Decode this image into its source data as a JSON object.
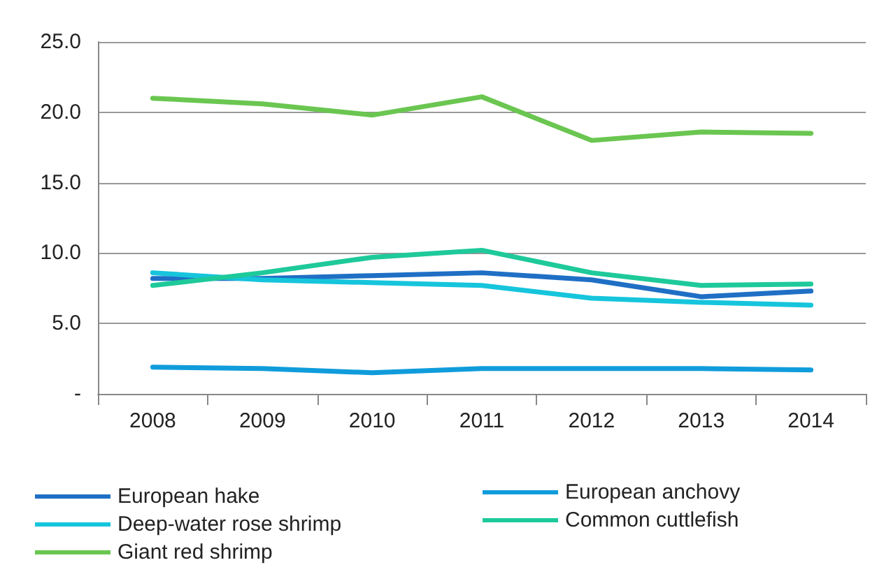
{
  "chart_data": {
    "type": "line",
    "categories": [
      "2008",
      "2009",
      "2010",
      "2011",
      "2012",
      "2013",
      "2014"
    ],
    "series": [
      {
        "name": "European hake",
        "color": "#1f6fc5",
        "values": [
          8.2,
          8.2,
          8.4,
          8.6,
          8.1,
          6.9,
          7.3
        ]
      },
      {
        "name": "European anchovy",
        "color": "#109cdb",
        "values": [
          1.9,
          1.8,
          1.5,
          1.8,
          1.8,
          1.8,
          1.7
        ]
      },
      {
        "name": "Deep-water rose shrimp",
        "color": "#16c5dc",
        "values": [
          8.6,
          8.1,
          7.9,
          7.7,
          6.8,
          6.5,
          6.3
        ]
      },
      {
        "name": "Common cuttlefish",
        "color": "#1ec99a",
        "values": [
          7.7,
          8.6,
          9.7,
          10.2,
          8.6,
          7.7,
          7.8
        ]
      },
      {
        "name": "Giant red shrimp",
        "color": "#6ac650",
        "values": [
          21.0,
          20.6,
          19.8,
          21.1,
          18.0,
          18.6,
          18.5
        ]
      }
    ],
    "ylim": [
      0,
      25
    ],
    "yticks": [
      {
        "value": 0,
        "label": "-"
      },
      {
        "value": 5,
        "label": "5.0"
      },
      {
        "value": 10,
        "label": "10.0"
      },
      {
        "value": 15,
        "label": "15.0"
      },
      {
        "value": 20,
        "label": "20.0"
      },
      {
        "value": 25,
        "label": "25.0"
      }
    ],
    "grid": "y",
    "legend": "bottom",
    "marker": "none",
    "line_style": "solid"
  }
}
